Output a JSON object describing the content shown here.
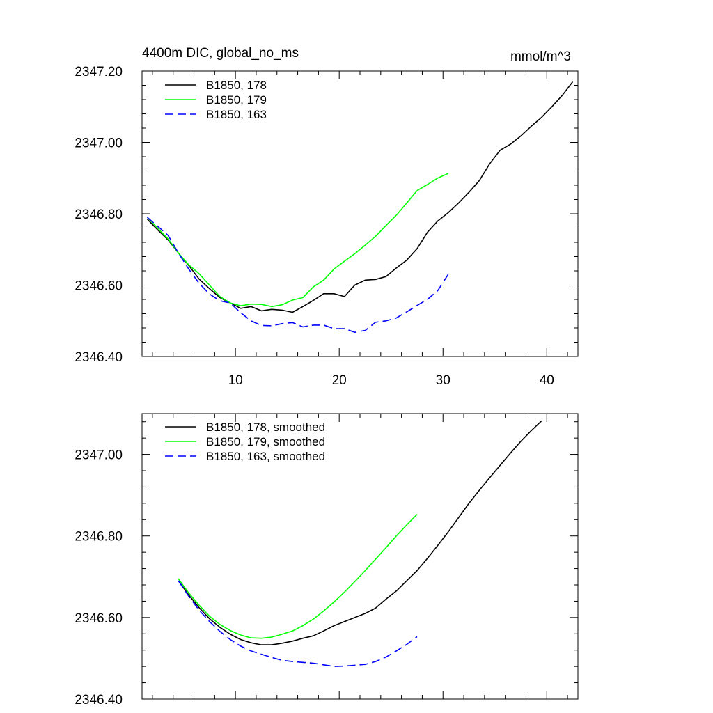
{
  "chart_data": [
    {
      "type": "line",
      "title": "4400m DIC, global_no_ms",
      "units": "mmol/m^3",
      "xlim": [
        1,
        43
      ],
      "ylim": [
        2346.4,
        2347.2
      ],
      "xticks": [
        10,
        20,
        30,
        40
      ],
      "xtick_labels": [
        "10",
        "20",
        "30",
        "40"
      ],
      "yticks": [
        2346.4,
        2346.6,
        2346.8,
        2347.0,
        2347.2
      ],
      "ytick_labels": [
        "2346.40",
        "2346.60",
        "2346.80",
        "2347.00",
        "2347.20"
      ],
      "legend_position": "top-left",
      "series": [
        {
          "name": "B1850, 178",
          "color": "#000000",
          "dash": "solid",
          "x": [
            1.5,
            2.5,
            3.5,
            4.5,
            5.5,
            6.5,
            7.5,
            8.5,
            9.5,
            10.5,
            11.5,
            12.5,
            13.5,
            14.5,
            15.5,
            16.5,
            17.5,
            18.5,
            19.5,
            20.5,
            21.5,
            22.5,
            23.5,
            24.5,
            25.5,
            26.5,
            27.5,
            28.5,
            29.5,
            30.5,
            31.5,
            32.5,
            33.5,
            34.5,
            35.5,
            36.5,
            37.5,
            38.5,
            39.5,
            40.5,
            41.5,
            42.5
          ],
          "y": [
            2346.785,
            2346.755,
            2346.727,
            2346.69,
            2346.655,
            2346.617,
            2346.59,
            2346.565,
            2346.55,
            2346.535,
            2346.54,
            2346.528,
            2346.532,
            2346.53,
            2346.524,
            2346.54,
            2346.557,
            2346.576,
            2346.576,
            2346.568,
            2346.6,
            2346.614,
            2346.616,
            2346.624,
            2346.648,
            2346.67,
            2346.702,
            2346.748,
            2346.78,
            2346.803,
            2346.83,
            2346.86,
            2346.893,
            2346.94,
            2346.978,
            2346.995,
            2347.018,
            2347.045,
            2347.07,
            2347.1,
            2347.132,
            2347.17
          ]
        },
        {
          "name": "B1850, 179",
          "color": "#00ff00",
          "dash": "solid",
          "x": [
            1.5,
            2.5,
            3.5,
            4.5,
            5.5,
            6.5,
            7.5,
            8.5,
            9.5,
            10.5,
            11.5,
            12.5,
            13.5,
            14.5,
            15.5,
            16.5,
            17.5,
            18.5,
            19.5,
            20.5,
            21.5,
            22.5,
            23.5,
            24.5,
            25.5,
            26.5,
            27.5,
            28.5,
            29.5,
            30.5
          ],
          "y": [
            2346.79,
            2346.76,
            2346.73,
            2346.69,
            2346.657,
            2346.632,
            2346.6,
            2346.568,
            2346.55,
            2346.542,
            2346.547,
            2346.546,
            2346.54,
            2346.545,
            2346.558,
            2346.565,
            2346.595,
            2346.614,
            2346.645,
            2346.667,
            2346.688,
            2346.712,
            2346.737,
            2346.767,
            2346.796,
            2346.83,
            2346.865,
            2346.882,
            2346.9,
            2346.913
          ]
        },
        {
          "name": "B1850, 163",
          "color": "#0000ff",
          "dash": "dashed",
          "x": [
            1.5,
            2.5,
            3.5,
            4.5,
            5.5,
            6.5,
            7.5,
            8.5,
            9.5,
            10.5,
            11.5,
            12.5,
            13.5,
            14.5,
            15.5,
            16.5,
            17.5,
            18.5,
            19.5,
            20.5,
            21.5,
            22.5,
            23.5,
            24.5,
            25.5,
            26.5,
            27.5,
            28.5,
            29.5,
            30.5
          ],
          "y": [
            2346.79,
            2346.765,
            2346.74,
            2346.69,
            2346.645,
            2346.605,
            2346.575,
            2346.556,
            2346.55,
            2346.523,
            2346.5,
            2346.487,
            2346.486,
            2346.492,
            2346.495,
            2346.483,
            2346.488,
            2346.488,
            2346.478,
            2346.478,
            2346.468,
            2346.473,
            2346.496,
            2346.5,
            2346.508,
            2346.525,
            2346.543,
            2346.56,
            2346.585,
            2346.63
          ]
        }
      ]
    },
    {
      "type": "line",
      "xlim": [
        1,
        43
      ],
      "ylim": [
        2346.4,
        2347.1
      ],
      "xticks": [
        10,
        20,
        30,
        40
      ],
      "yticks": [
        2346.4,
        2346.6,
        2346.8,
        2347.0
      ],
      "ytick_labels": [
        "2346.40",
        "2346.60",
        "2346.80",
        "2347.00"
      ],
      "legend_position": "top-left",
      "series": [
        {
          "name": "B1850, 178, smoothed",
          "color": "#000000",
          "dash": "solid",
          "x": [
            4.5,
            5.5,
            6.5,
            7.5,
            8.5,
            9.5,
            10.5,
            11.5,
            12.5,
            13.5,
            14.5,
            15.5,
            16.5,
            17.5,
            18.5,
            19.5,
            20.5,
            21.5,
            22.5,
            23.5,
            24.5,
            25.5,
            26.5,
            27.5,
            28.5,
            29.5,
            30.5,
            31.5,
            32.5,
            33.5,
            34.5,
            35.5,
            36.5,
            37.5,
            38.5,
            39.5
          ],
          "y": [
            2346.69,
            2346.655,
            2346.624,
            2346.597,
            2346.576,
            2346.559,
            2346.546,
            2346.538,
            2346.533,
            2346.533,
            2346.537,
            2346.542,
            2346.549,
            2346.555,
            2346.567,
            2346.58,
            2346.59,
            2346.6,
            2346.61,
            2346.623,
            2346.645,
            2346.665,
            2346.69,
            2346.715,
            2346.745,
            2346.777,
            2346.81,
            2346.845,
            2346.88,
            2346.912,
            2346.943,
            2346.973,
            2347.003,
            2347.032,
            2347.058,
            2347.082
          ]
        },
        {
          "name": "B1850, 179, smoothed",
          "color": "#00ff00",
          "dash": "solid",
          "x": [
            4.5,
            5.5,
            6.5,
            7.5,
            8.5,
            9.5,
            10.5,
            11.5,
            12.5,
            13.5,
            14.5,
            15.5,
            16.5,
            17.5,
            18.5,
            19.5,
            20.5,
            21.5,
            22.5,
            23.5,
            24.5,
            25.5,
            26.5,
            27.5
          ],
          "y": [
            2346.695,
            2346.66,
            2346.63,
            2346.603,
            2346.583,
            2346.568,
            2346.557,
            2346.55,
            2346.549,
            2346.552,
            2346.559,
            2346.567,
            2346.58,
            2346.596,
            2346.616,
            2346.638,
            2346.662,
            2346.688,
            2346.715,
            2346.743,
            2346.771,
            2346.8,
            2346.827,
            2346.853
          ]
        },
        {
          "name": "B1850, 163, smoothed",
          "color": "#0000ff",
          "dash": "dashed",
          "x": [
            4.5,
            5.5,
            6.5,
            7.5,
            8.5,
            9.5,
            10.5,
            11.5,
            12.5,
            13.5,
            14.5,
            15.5,
            16.5,
            17.5,
            18.5,
            19.5,
            20.5,
            21.5,
            22.5,
            23.5,
            24.5,
            25.5,
            26.5,
            27.5
          ],
          "y": [
            2346.69,
            2346.652,
            2346.618,
            2346.59,
            2346.566,
            2346.546,
            2346.53,
            2346.518,
            2346.51,
            2346.502,
            2346.495,
            2346.492,
            2346.49,
            2346.488,
            2346.484,
            2346.48,
            2346.481,
            2346.483,
            2346.485,
            2346.492,
            2346.503,
            2346.518,
            2346.534,
            2346.553
          ]
        }
      ]
    }
  ]
}
